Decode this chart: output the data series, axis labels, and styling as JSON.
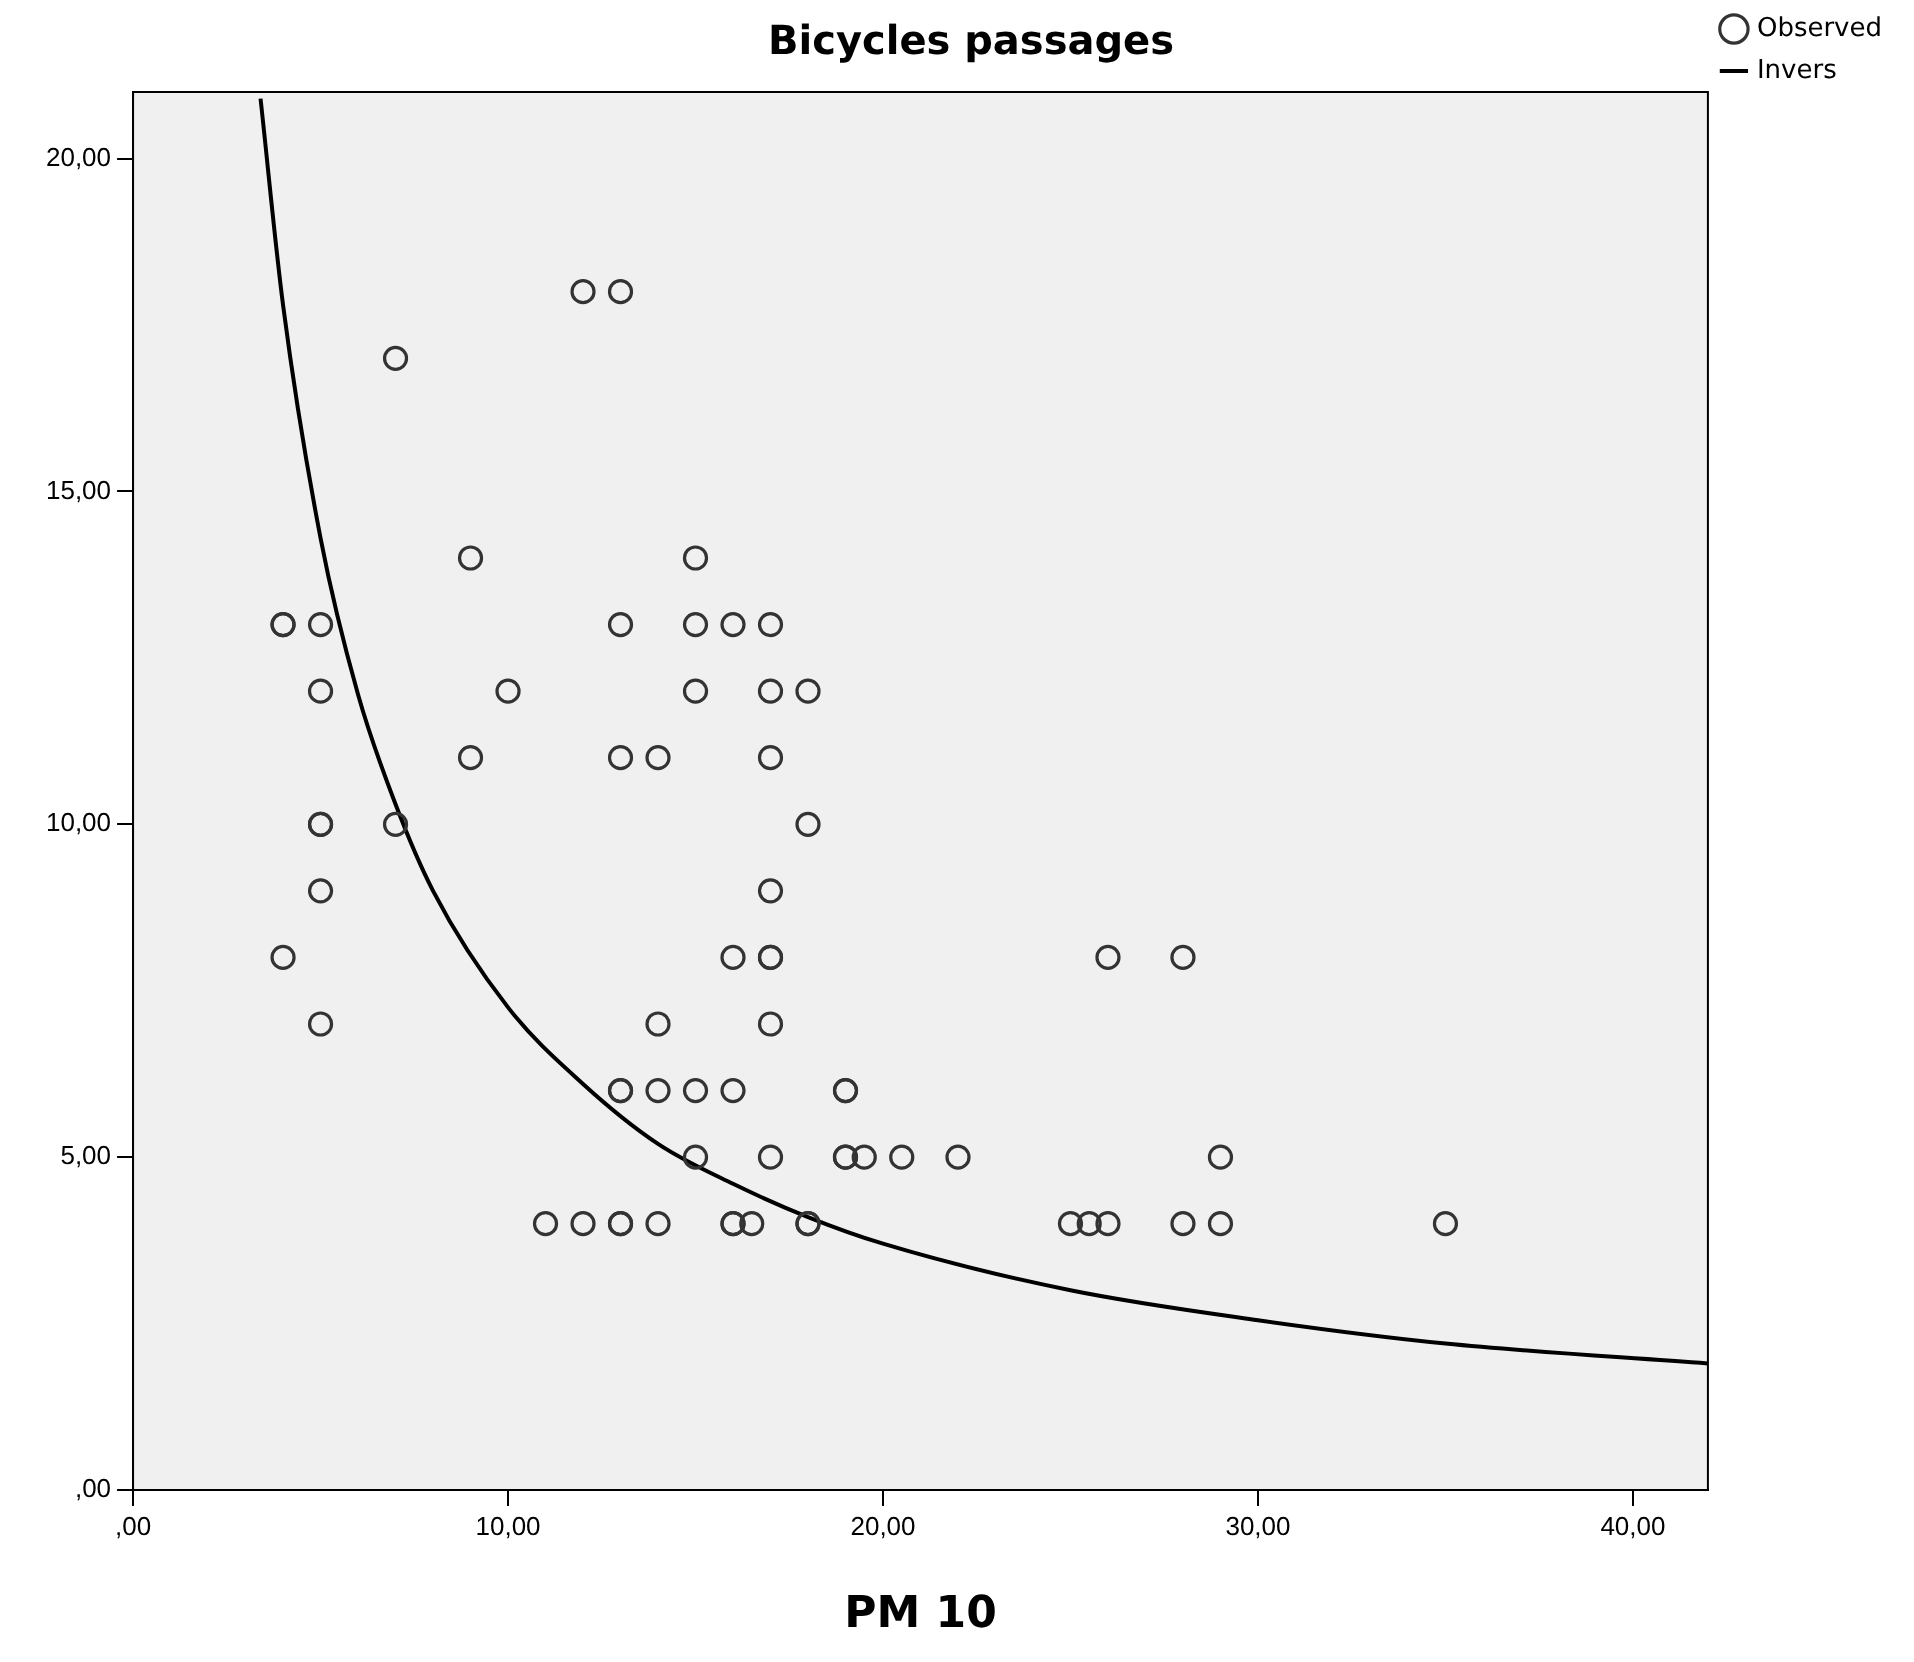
{
  "chart_data": {
    "type": "scatter",
    "title": "Bicycles passages",
    "xlabel": "PM 10",
    "xlim": [
      0,
      42
    ],
    "ylim": [
      0,
      21
    ],
    "xticks": [
      {
        "value": 0,
        "label": ",00"
      },
      {
        "value": 10,
        "label": "10,00"
      },
      {
        "value": 20,
        "label": "20,00"
      },
      {
        "value": 30,
        "label": "30,00"
      },
      {
        "value": 40,
        "label": "40,00"
      }
    ],
    "yticks": [
      {
        "value": 0,
        "label": ",00"
      },
      {
        "value": 5,
        "label": "5,00"
      },
      {
        "value": 10,
        "label": "10,00"
      },
      {
        "value": 15,
        "label": "15,00"
      },
      {
        "value": 20,
        "label": "20,00"
      }
    ],
    "grid": false,
    "legend": "top right",
    "marker": "circle",
    "series": [
      {
        "name": "Observed",
        "color": "#333333",
        "x": [
          12,
          13,
          7,
          9,
          15,
          4,
          4,
          5,
          13,
          15,
          16,
          17,
          5,
          10,
          15,
          17,
          18,
          9,
          13,
          14,
          17,
          5,
          5,
          7,
          18,
          5,
          17,
          4,
          16,
          17,
          17,
          26,
          28,
          5,
          14,
          17,
          13,
          13,
          14,
          15,
          16,
          19,
          19,
          15,
          17,
          19,
          19,
          19.5,
          20.5,
          22,
          29,
          11,
          12,
          13,
          13,
          14,
          16,
          16,
          16.5,
          18,
          18,
          25,
          25.5,
          26,
          28,
          29,
          35
        ],
        "values": [
          18,
          18,
          17,
          14,
          14,
          13,
          13,
          13,
          13,
          13,
          13,
          13,
          12,
          12,
          12,
          12,
          12,
          11,
          11,
          11,
          11,
          10,
          10,
          10,
          10,
          9,
          9,
          8,
          8,
          8,
          8,
          8,
          8,
          7,
          7,
          7,
          6,
          6,
          6,
          6,
          6,
          6,
          6,
          5,
          5,
          5,
          5,
          5,
          5,
          5,
          5,
          4,
          4,
          4,
          4,
          4,
          4,
          4,
          4,
          4,
          4,
          4,
          4,
          4,
          4,
          4,
          4
        ]
      },
      {
        "name": "Invers",
        "type": "line",
        "color": "#000000",
        "marker": "none",
        "line_style": "solid",
        "x": [
          3.4,
          4,
          5,
          6,
          7,
          8,
          10,
          12,
          14,
          16,
          18,
          20,
          25,
          30,
          35,
          42
        ],
        "values": [
          20.9,
          17.8,
          14.3,
          11.95,
          10.3,
          9.0,
          7.25,
          6.1,
          5.2,
          4.6,
          4.1,
          3.7,
          3.0,
          2.55,
          2.2,
          1.9
        ]
      }
    ]
  }
}
